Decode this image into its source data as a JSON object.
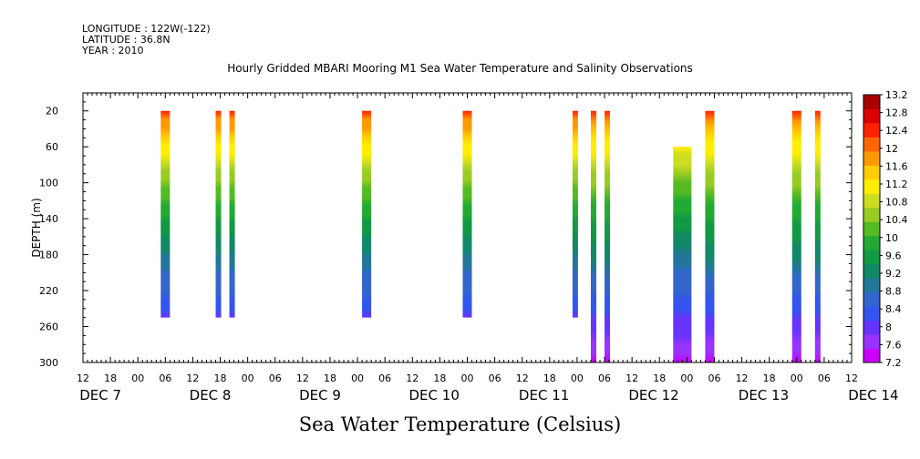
{
  "header": {
    "longitude": "LONGITUDE : 122W(-122)",
    "latitude": "LATITUDE : 36.8N",
    "year": "YEAR : 2010"
  },
  "chart_data": {
    "type": "heatmap",
    "title": "Hourly Gridded MBARI Mooring M1 Sea Water Temperature and Salinity Observations",
    "xlabel": "Sea Water Temperature (Celsius)",
    "ylabel": "DEPTH (m)",
    "x_unit": "hours since Dec 7 00:00",
    "xlim": [
      -12,
      156
    ],
    "ylim": [
      300,
      0
    ],
    "y_axis_reversed": true,
    "x_tick_labels": [
      "12",
      "18",
      "00",
      "06",
      "12",
      "18",
      "00",
      "06",
      "12",
      "18",
      "00",
      "06",
      "12",
      "18",
      "00",
      "06",
      "12",
      "18",
      "00",
      "06",
      "12",
      "18",
      "00",
      "06",
      "12",
      "18",
      "00",
      "06",
      "12"
    ],
    "x_tick_hours": [
      -12,
      -6,
      0,
      6,
      12,
      18,
      24,
      30,
      36,
      42,
      48,
      54,
      60,
      66,
      72,
      78,
      84,
      90,
      96,
      102,
      108,
      114,
      120,
      126,
      132,
      138,
      144,
      150,
      156
    ],
    "date_labels": [
      {
        "text": "DEC  7",
        "hour": 0
      },
      {
        "text": "DEC  8",
        "hour": 24
      },
      {
        "text": "DEC  9",
        "hour": 48
      },
      {
        "text": "DEC 10",
        "hour": 72
      },
      {
        "text": "DEC 11",
        "hour": 96
      },
      {
        "text": "DEC 12",
        "hour": 120
      },
      {
        "text": "DEC 13",
        "hour": 144
      },
      {
        "text": "DEC 14",
        "hour": 168
      }
    ],
    "y_ticks": [
      20,
      60,
      100,
      140,
      180,
      220,
      260,
      300
    ],
    "colorbar": {
      "min": 7.2,
      "max": 13.2,
      "labels": [
        "13.2",
        "12.8",
        "12.4",
        "12",
        "11.6",
        "11.2",
        "10.8",
        "10.4",
        "10",
        "9.6",
        "9.2",
        "8.8",
        "8.4",
        "8",
        "7.6",
        "7.2"
      ]
    },
    "profiles": [
      {
        "start": 5,
        "end": 7,
        "top_depth": 20,
        "bottom_depth": 250,
        "top_temp": 12.3,
        "bottom_temp": 8.1
      },
      {
        "start": 17,
        "end": 18,
        "top_depth": 20,
        "bottom_depth": 250,
        "top_temp": 12.3,
        "bottom_temp": 8.1
      },
      {
        "start": 20,
        "end": 21,
        "top_depth": 20,
        "bottom_depth": 250,
        "top_temp": 12.3,
        "bottom_temp": 8.1
      },
      {
        "start": 49,
        "end": 51,
        "top_depth": 20,
        "bottom_depth": 250,
        "top_temp": 12.3,
        "bottom_temp": 8.1
      },
      {
        "start": 71,
        "end": 73,
        "top_depth": 20,
        "bottom_depth": 250,
        "top_temp": 12.3,
        "bottom_temp": 8.1
      },
      {
        "start": 95,
        "end": 96,
        "top_depth": 20,
        "bottom_depth": 250,
        "top_temp": 12.3,
        "bottom_temp": 8.1
      },
      {
        "start": 99,
        "end": 100,
        "top_depth": 20,
        "bottom_depth": 300,
        "top_temp": 12.3,
        "bottom_temp": 7.5
      },
      {
        "start": 102,
        "end": 103,
        "top_depth": 20,
        "bottom_depth": 300,
        "top_temp": 12.3,
        "bottom_temp": 7.5
      },
      {
        "start": 117,
        "end": 121,
        "top_depth": 60,
        "bottom_depth": 300,
        "top_temp": 11.3,
        "bottom_temp": 7.5
      },
      {
        "start": 124,
        "end": 126,
        "top_depth": 20,
        "bottom_depth": 300,
        "top_temp": 12.3,
        "bottom_temp": 7.5
      },
      {
        "start": 143,
        "end": 145,
        "top_depth": 20,
        "bottom_depth": 300,
        "top_temp": 12.3,
        "bottom_temp": 7.5
      },
      {
        "start": 148,
        "end": 149,
        "top_depth": 20,
        "bottom_depth": 300,
        "top_temp": 12.3,
        "bottom_temp": 7.5
      }
    ]
  }
}
